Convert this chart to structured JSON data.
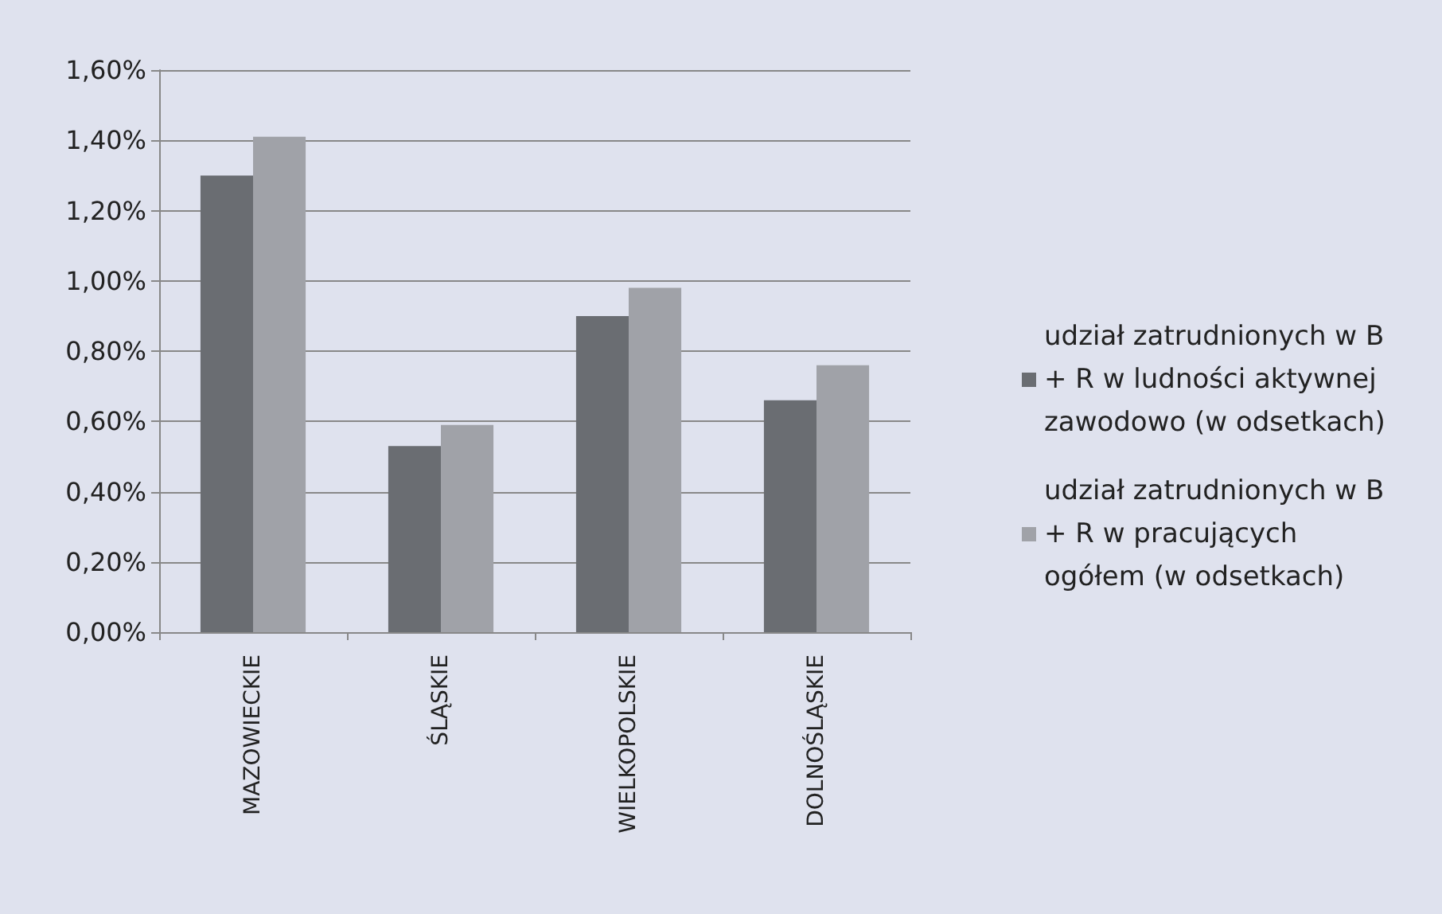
{
  "chart_data": {
    "type": "bar",
    "categories": [
      "MAZOWIECKIE",
      "ŚLĄSKIE",
      "WIELKOPOLSKIE",
      "DOLNOŚLĄSKIE"
    ],
    "series": [
      {
        "name": "udział zatrudnionych w B + R w ludności aktywnej zawodowo (w odsetkach)",
        "color": "#6a6d72",
        "values": [
          1.3,
          0.53,
          0.9,
          0.66
        ]
      },
      {
        "name": "udział zatrudnionych w B + R w pracujących ogółem (w odsetkach)",
        "color": "#a0a2a8",
        "values": [
          1.41,
          0.59,
          0.98,
          0.76
        ]
      }
    ],
    "ylim": [
      0,
      1.6
    ],
    "yticks": [
      {
        "value": 0,
        "label": "0,00%"
      },
      {
        "value": 0.2,
        "label": "0,20%"
      },
      {
        "value": 0.4,
        "label": "0,40%"
      },
      {
        "value": 0.6,
        "label": "0,60%"
      },
      {
        "value": 0.8,
        "label": "0,80%"
      },
      {
        "value": 1.0,
        "label": "1,00%"
      },
      {
        "value": 1.2,
        "label": "1,20%"
      },
      {
        "value": 1.4,
        "label": "1,40%"
      },
      {
        "value": 1.6,
        "label": "1,60%"
      }
    ],
    "grid": "y",
    "legend": "right"
  }
}
